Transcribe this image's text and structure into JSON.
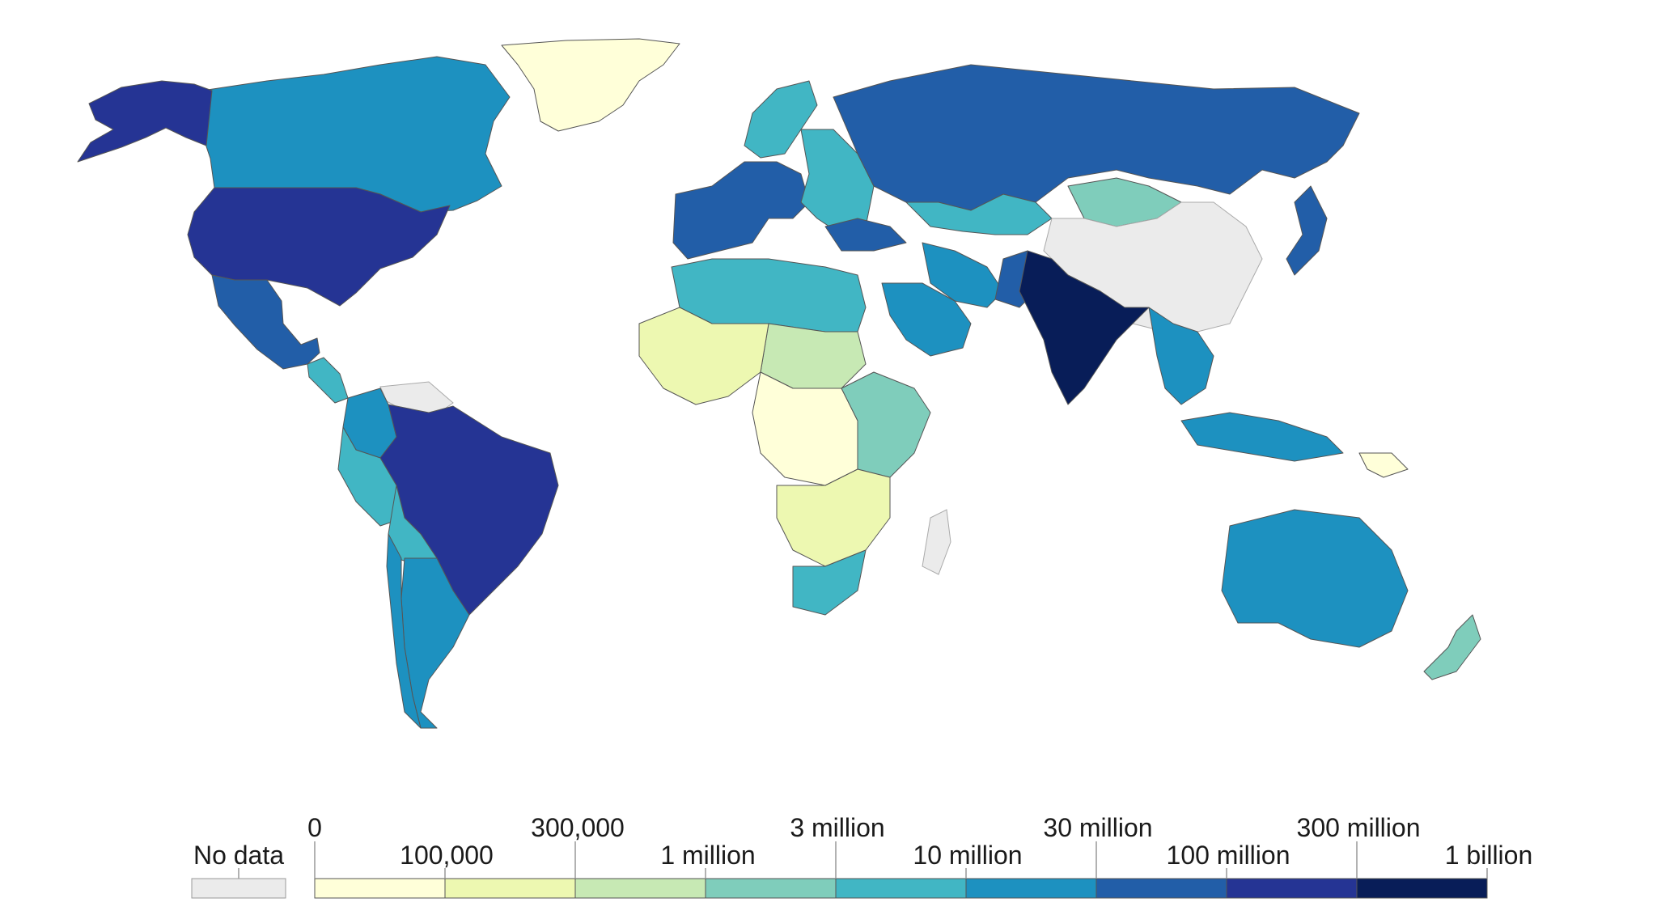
{
  "legend": {
    "no_data_label": "No data",
    "no_data_color": "#ebebeb",
    "bins": [
      {
        "label_top": "0",
        "label_bottom": "100,000",
        "color": "#ffffd9"
      },
      {
        "label_top": "300,000",
        "label_bottom": "1 million",
        "color": "#edf8b1"
      },
      {
        "label_top": "3 million",
        "label_bottom": "10 million",
        "color": "#c7e9b4"
      },
      {
        "label_top": "30 million",
        "label_bottom": "100 million",
        "color": "#7fcdbb"
      },
      {
        "label_top": "300 million",
        "label_bottom": "1 billion",
        "color": "#41b6c4"
      }
    ],
    "scale_colors": [
      "#ffffd9",
      "#edf8b1",
      "#c7e9b4",
      "#7fcdbb",
      "#41b6c4",
      "#1d91c0",
      "#225ea8",
      "#253494",
      "#081d58"
    ]
  },
  "regions": [
    {
      "name": "Greenland",
      "bin": "nodata-light"
    },
    {
      "name": "Canada",
      "bin": 5
    },
    {
      "name": "Alaska",
      "bin": 7
    },
    {
      "name": "United States",
      "bin": 7
    },
    {
      "name": "Mexico",
      "bin": 6
    },
    {
      "name": "Central America",
      "bin": 4
    },
    {
      "name": "Venezuela & Guianas",
      "bin": "nodata"
    },
    {
      "name": "Colombia",
      "bin": 5
    },
    {
      "name": "Brazil",
      "bin": 7
    },
    {
      "name": "Peru",
      "bin": 4
    },
    {
      "name": "Bolivia",
      "bin": 4
    },
    {
      "name": "Argentina",
      "bin": 5
    },
    {
      "name": "Chile",
      "bin": 5
    },
    {
      "name": "Western Europe",
      "bin": 6
    },
    {
      "name": "Scandinavia",
      "bin": 4
    },
    {
      "name": "Eastern Europe",
      "bin": 4
    },
    {
      "name": "Russia",
      "bin": 6
    },
    {
      "name": "Kazakhstan",
      "bin": 4
    },
    {
      "name": "Mongolia",
      "bin": 3
    },
    {
      "name": "China",
      "bin": "nodata"
    },
    {
      "name": "Turkey",
      "bin": 6
    },
    {
      "name": "Iran",
      "bin": 5
    },
    {
      "name": "Saudi Arabia",
      "bin": 5
    },
    {
      "name": "Pakistan",
      "bin": 6
    },
    {
      "name": "India",
      "bin": 8
    },
    {
      "name": "Southeast Asia",
      "bin": 5
    },
    {
      "name": "Indonesia",
      "bin": 5
    },
    {
      "name": "Japan",
      "bin": 6
    },
    {
      "name": "North Africa",
      "bin": 4
    },
    {
      "name": "Libya & Sahel",
      "bin": 2
    },
    {
      "name": "West Africa",
      "bin": 1
    },
    {
      "name": "Central Africa",
      "bin": 0
    },
    {
      "name": "East Africa",
      "bin": 3
    },
    {
      "name": "Southern Africa",
      "bin": 1
    },
    {
      "name": "South Africa",
      "bin": 4
    },
    {
      "name": "Madagascar",
      "bin": "nodata"
    },
    {
      "name": "Australia",
      "bin": 5
    },
    {
      "name": "New Zealand",
      "bin": 3
    },
    {
      "name": "Papua New Guinea",
      "bin": 0
    }
  ]
}
